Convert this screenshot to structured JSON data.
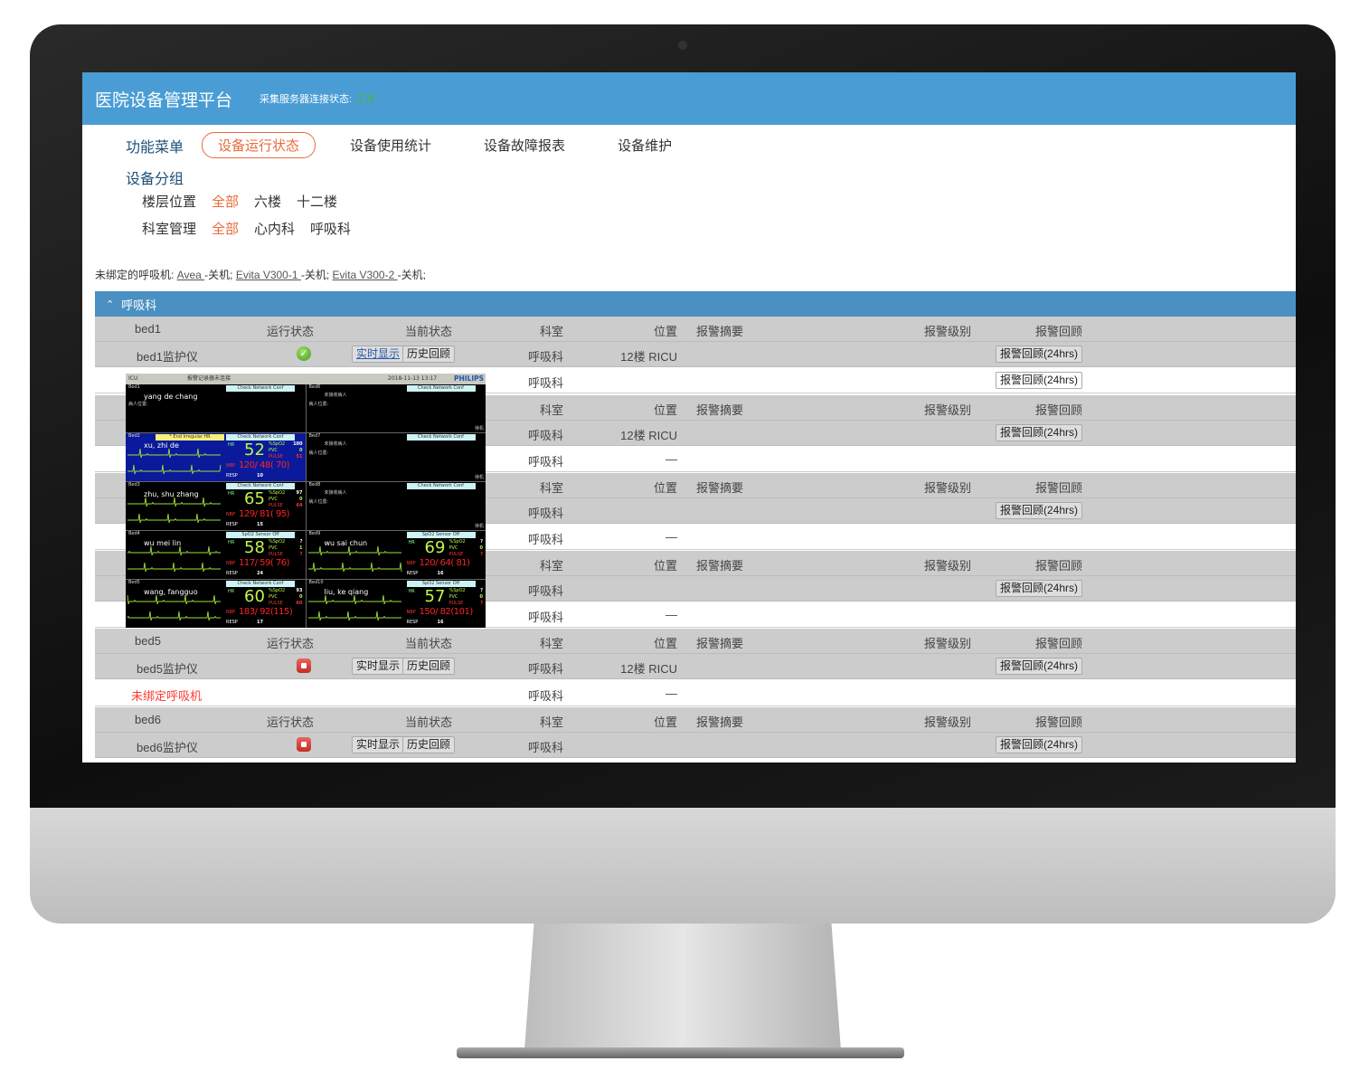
{
  "header": {
    "title": "医院设备管理平台",
    "conn_label": "采集服务器连接状态:",
    "conn_value": "正常"
  },
  "menu": {
    "label": "功能菜单",
    "items": [
      "设备运行状态",
      "设备使用统计",
      "设备故障报表",
      "设备维护"
    ],
    "active": 0
  },
  "group": {
    "label": "设备分组",
    "floor_label": "楼层位置",
    "floor": [
      "全部",
      "六楼",
      "十二楼"
    ],
    "dept_label": "科室管理",
    "dept": [
      "全部",
      "心内科",
      "呼吸科"
    ]
  },
  "unbound": {
    "prefix": "未绑定的呼吸机: ",
    "items": [
      {
        "name": "Avea ",
        "state": "-关机; "
      },
      {
        "name": "Evita V300-1 ",
        "state": "-关机; "
      },
      {
        "name": "Evita V300-2 ",
        "state": "-关机;"
      }
    ]
  },
  "section": {
    "title": "呼吸科",
    "chevron": "chevron-up-icon"
  },
  "columns": {
    "run": "运行状态",
    "cur": "当前状态",
    "dept": "科室",
    "pos": "位置",
    "sum": "报警摘要",
    "lvl": "报警级别",
    "rev": "报警回顾"
  },
  "buttons": {
    "realtime": "实时显示",
    "history": "历史回顾",
    "review": "报警回顾(24hrs)"
  },
  "rows": [
    {
      "type": "head",
      "bed": "bed1"
    },
    {
      "type": "dev",
      "name": "bed1监护仪",
      "status": "ok",
      "realtime_link": true,
      "dept": "呼吸科",
      "pos": "12楼 RICU",
      "review": true
    },
    {
      "type": "vent",
      "dept": "呼吸科",
      "review": true
    },
    {
      "type": "head",
      "bed": ""
    },
    {
      "type": "dev",
      "name": "",
      "dept": "呼吸科",
      "pos": "12楼 RICU",
      "review": true
    },
    {
      "type": "vent",
      "dept": "呼吸科",
      "pos": "—"
    },
    {
      "type": "head",
      "bed": ""
    },
    {
      "type": "dev",
      "name": "",
      "dept": "呼吸科",
      "review": true
    },
    {
      "type": "vent",
      "dept": "呼吸科",
      "pos": "—"
    },
    {
      "type": "head",
      "bed": ""
    },
    {
      "type": "dev",
      "name": "",
      "dept": "呼吸科",
      "review": true
    },
    {
      "type": "vent",
      "dept": "呼吸科",
      "pos": "—"
    },
    {
      "type": "head",
      "bed": "bed5"
    },
    {
      "type": "dev",
      "name": "bed5监护仪",
      "status": "stop",
      "dept": "呼吸科",
      "pos": "12楼 RICU",
      "review": true
    },
    {
      "type": "vent",
      "label": "未绑定呼吸机",
      "dept": "呼吸科",
      "pos": "—"
    },
    {
      "type": "head",
      "bed": "bed6"
    },
    {
      "type": "dev",
      "name": "bed6监护仪",
      "status": "stop",
      "dept": "呼吸科",
      "review": true
    }
  ],
  "monitor": {
    "unit": "ICU",
    "recorder": "报警记录器未连接",
    "datetime": "2018-11-13 13:17",
    "brand": "PHILIPS",
    "labels": {
      "hr": "HR",
      "spo2": "%SpO2",
      "pvc": "PVC",
      "pulse": "PULSE",
      "nbp": "NBP",
      "resp": "RESP",
      "loc": "病人位置:",
      "empty": "未接收病人",
      "standby": "待机"
    },
    "beds": [
      {
        "bed": "Bed1",
        "status": "Check Network Conf",
        "name": "yang de chang",
        "loc": true
      },
      {
        "bed": "Bed6",
        "status": "Check Network Conf",
        "empty": true
      },
      {
        "bed": "Bed2",
        "status": "Check Network Conf",
        "alert": "* End Irregular HR",
        "name": "xu, zhi de",
        "hr": "52",
        "spo2": "100",
        "pvc": "0",
        "pulse": "51",
        "nbp": "120/ 48( 70)",
        "resp": "10"
      },
      {
        "bed": "Bed7",
        "status": "Check Network Conf",
        "empty": true
      },
      {
        "bed": "Bed3",
        "status": "Check Network Conf",
        "name": "zhu, shu zhang",
        "hr": "65",
        "spo2": "97",
        "pvc": "0",
        "pulse": "64",
        "nbp": "129/ 81( 95)",
        "resp": "15"
      },
      {
        "bed": "Bed8",
        "status": "Check Network Conf",
        "empty": true
      },
      {
        "bed": "Bed4",
        "status": "SpO2  Sensor Off",
        "name": "wu mei lin",
        "hr": "58",
        "spo2": "?",
        "pvc": "1",
        "pulse": "?",
        "nbp": "117/ 59( 76)",
        "resp": "24"
      },
      {
        "bed": "Bed9",
        "status": "SpO2  Sensor Off",
        "name": "wu sai chun",
        "hr": "69",
        "spo2": "?",
        "pvc": "0",
        "pulse": "?",
        "nbp": "120/ 64( 81)",
        "resp": "16"
      },
      {
        "bed": "Bed5",
        "status": "Check Network Conf",
        "name": "wang, fangguo",
        "hr": "60",
        "spo2": "93",
        "pvc": "0",
        "pulse": "60",
        "nbp": "183/ 92(115)",
        "resp": "17"
      },
      {
        "bed": "Bed10",
        "status": "SpO2  Sensor Off",
        "name": "liu, ke qiang",
        "hr": "57",
        "spo2": "?",
        "pvc": "0",
        "pulse": "?",
        "nbp": "150/ 82(101)",
        "resp": "16"
      }
    ]
  },
  "colors": {
    "accent": "#4a9dd4",
    "active": "#e96a3a",
    "ok": "#4caf50",
    "alarm": "#ff3b30"
  }
}
